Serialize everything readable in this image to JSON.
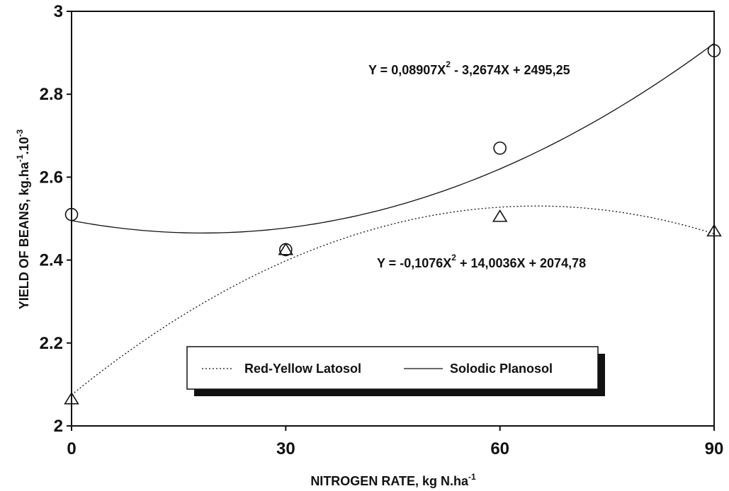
{
  "chart_data": {
    "type": "scatter",
    "xlabel": "NITROGEN RATE, kg N.ha",
    "xlabel_sup": "-1",
    "ylabel": "YIELD OF BEANS, kg.ha",
    "ylabel_sup1": "-1",
    "ylabel_mid": ".10",
    "ylabel_sup2": "-3",
    "xlim": [
      0,
      90
    ],
    "ylim": [
      2,
      3
    ],
    "x_ticks": [
      "0",
      "30",
      "60",
      "90"
    ],
    "y_ticks": [
      "2",
      "2.2",
      "2.4",
      "2.6",
      "2.8",
      "3"
    ],
    "grid": false,
    "legend_position": "bottom-center",
    "series": [
      {
        "name": "Red-Yellow Latosol",
        "marker": "triangle",
        "line_style": "dotted",
        "x": [
          0,
          30,
          60,
          90
        ],
        "y": [
          2.065,
          2.425,
          2.505,
          2.47
        ],
        "fit": {
          "a": -0.1076,
          "b": 14.0036,
          "c": 2074.78,
          "scale": 0.001
        },
        "equation_prefix": "Y = -0,1076X",
        "equation_sup": "2",
        "equation_suffix": " + 14,0036X + 2074,78"
      },
      {
        "name": "Solodic Planosol",
        "marker": "circle",
        "line_style": "solid",
        "x": [
          0,
          30,
          60,
          90
        ],
        "y": [
          2.51,
          2.425,
          2.67,
          2.905
        ],
        "fit": {
          "a": 0.08907,
          "b": -3.2674,
          "c": 2495.25,
          "scale": 0.001
        },
        "equation_prefix": "Y = 0,08907X",
        "equation_sup": "2",
        "equation_suffix": " - 3,2674X + 2495,25"
      }
    ]
  }
}
